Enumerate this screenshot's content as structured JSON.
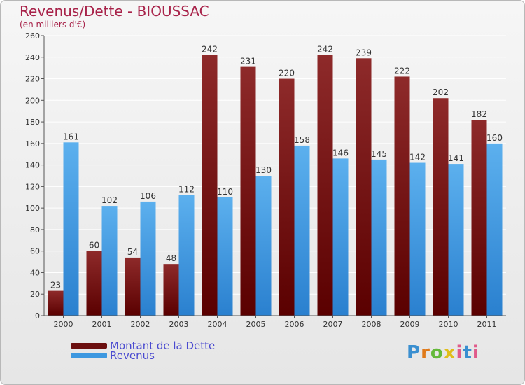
{
  "header": {
    "title": "Revenus/Dette - BIOUSSAC",
    "subtitle": "(en milliers d'€)"
  },
  "chart_data": {
    "type": "bar",
    "title": "Revenus/Dette - BIOUSSAC",
    "subtitle": "(en milliers d'€)",
    "categories": [
      "2000",
      "2001",
      "2002",
      "2003",
      "2004",
      "2005",
      "2006",
      "2007",
      "2008",
      "2009",
      "2010",
      "2011"
    ],
    "series": [
      {
        "name": "Montant de la Dette",
        "values": [
          23,
          60,
          54,
          48,
          242,
          231,
          220,
          242,
          239,
          222,
          202,
          182
        ],
        "color": "#7a1a1a"
      },
      {
        "name": "Revenus",
        "values": [
          161,
          102,
          106,
          112,
          110,
          130,
          158,
          146,
          145,
          142,
          141,
          160
        ],
        "color": "#4aa3e8"
      }
    ],
    "ylim": [
      0,
      260
    ],
    "yticks": [
      0,
      20,
      40,
      60,
      80,
      100,
      120,
      140,
      160,
      180,
      200,
      220,
      240,
      260
    ],
    "grid": true,
    "legend_position": "bottom-left"
  },
  "legend": {
    "items": [
      {
        "label": "Montant de la Dette",
        "color": "#6b0f0f"
      },
      {
        "label": "Revenus",
        "color": "#3d98e0"
      }
    ]
  },
  "logo": {
    "text": "Proxiti"
  }
}
